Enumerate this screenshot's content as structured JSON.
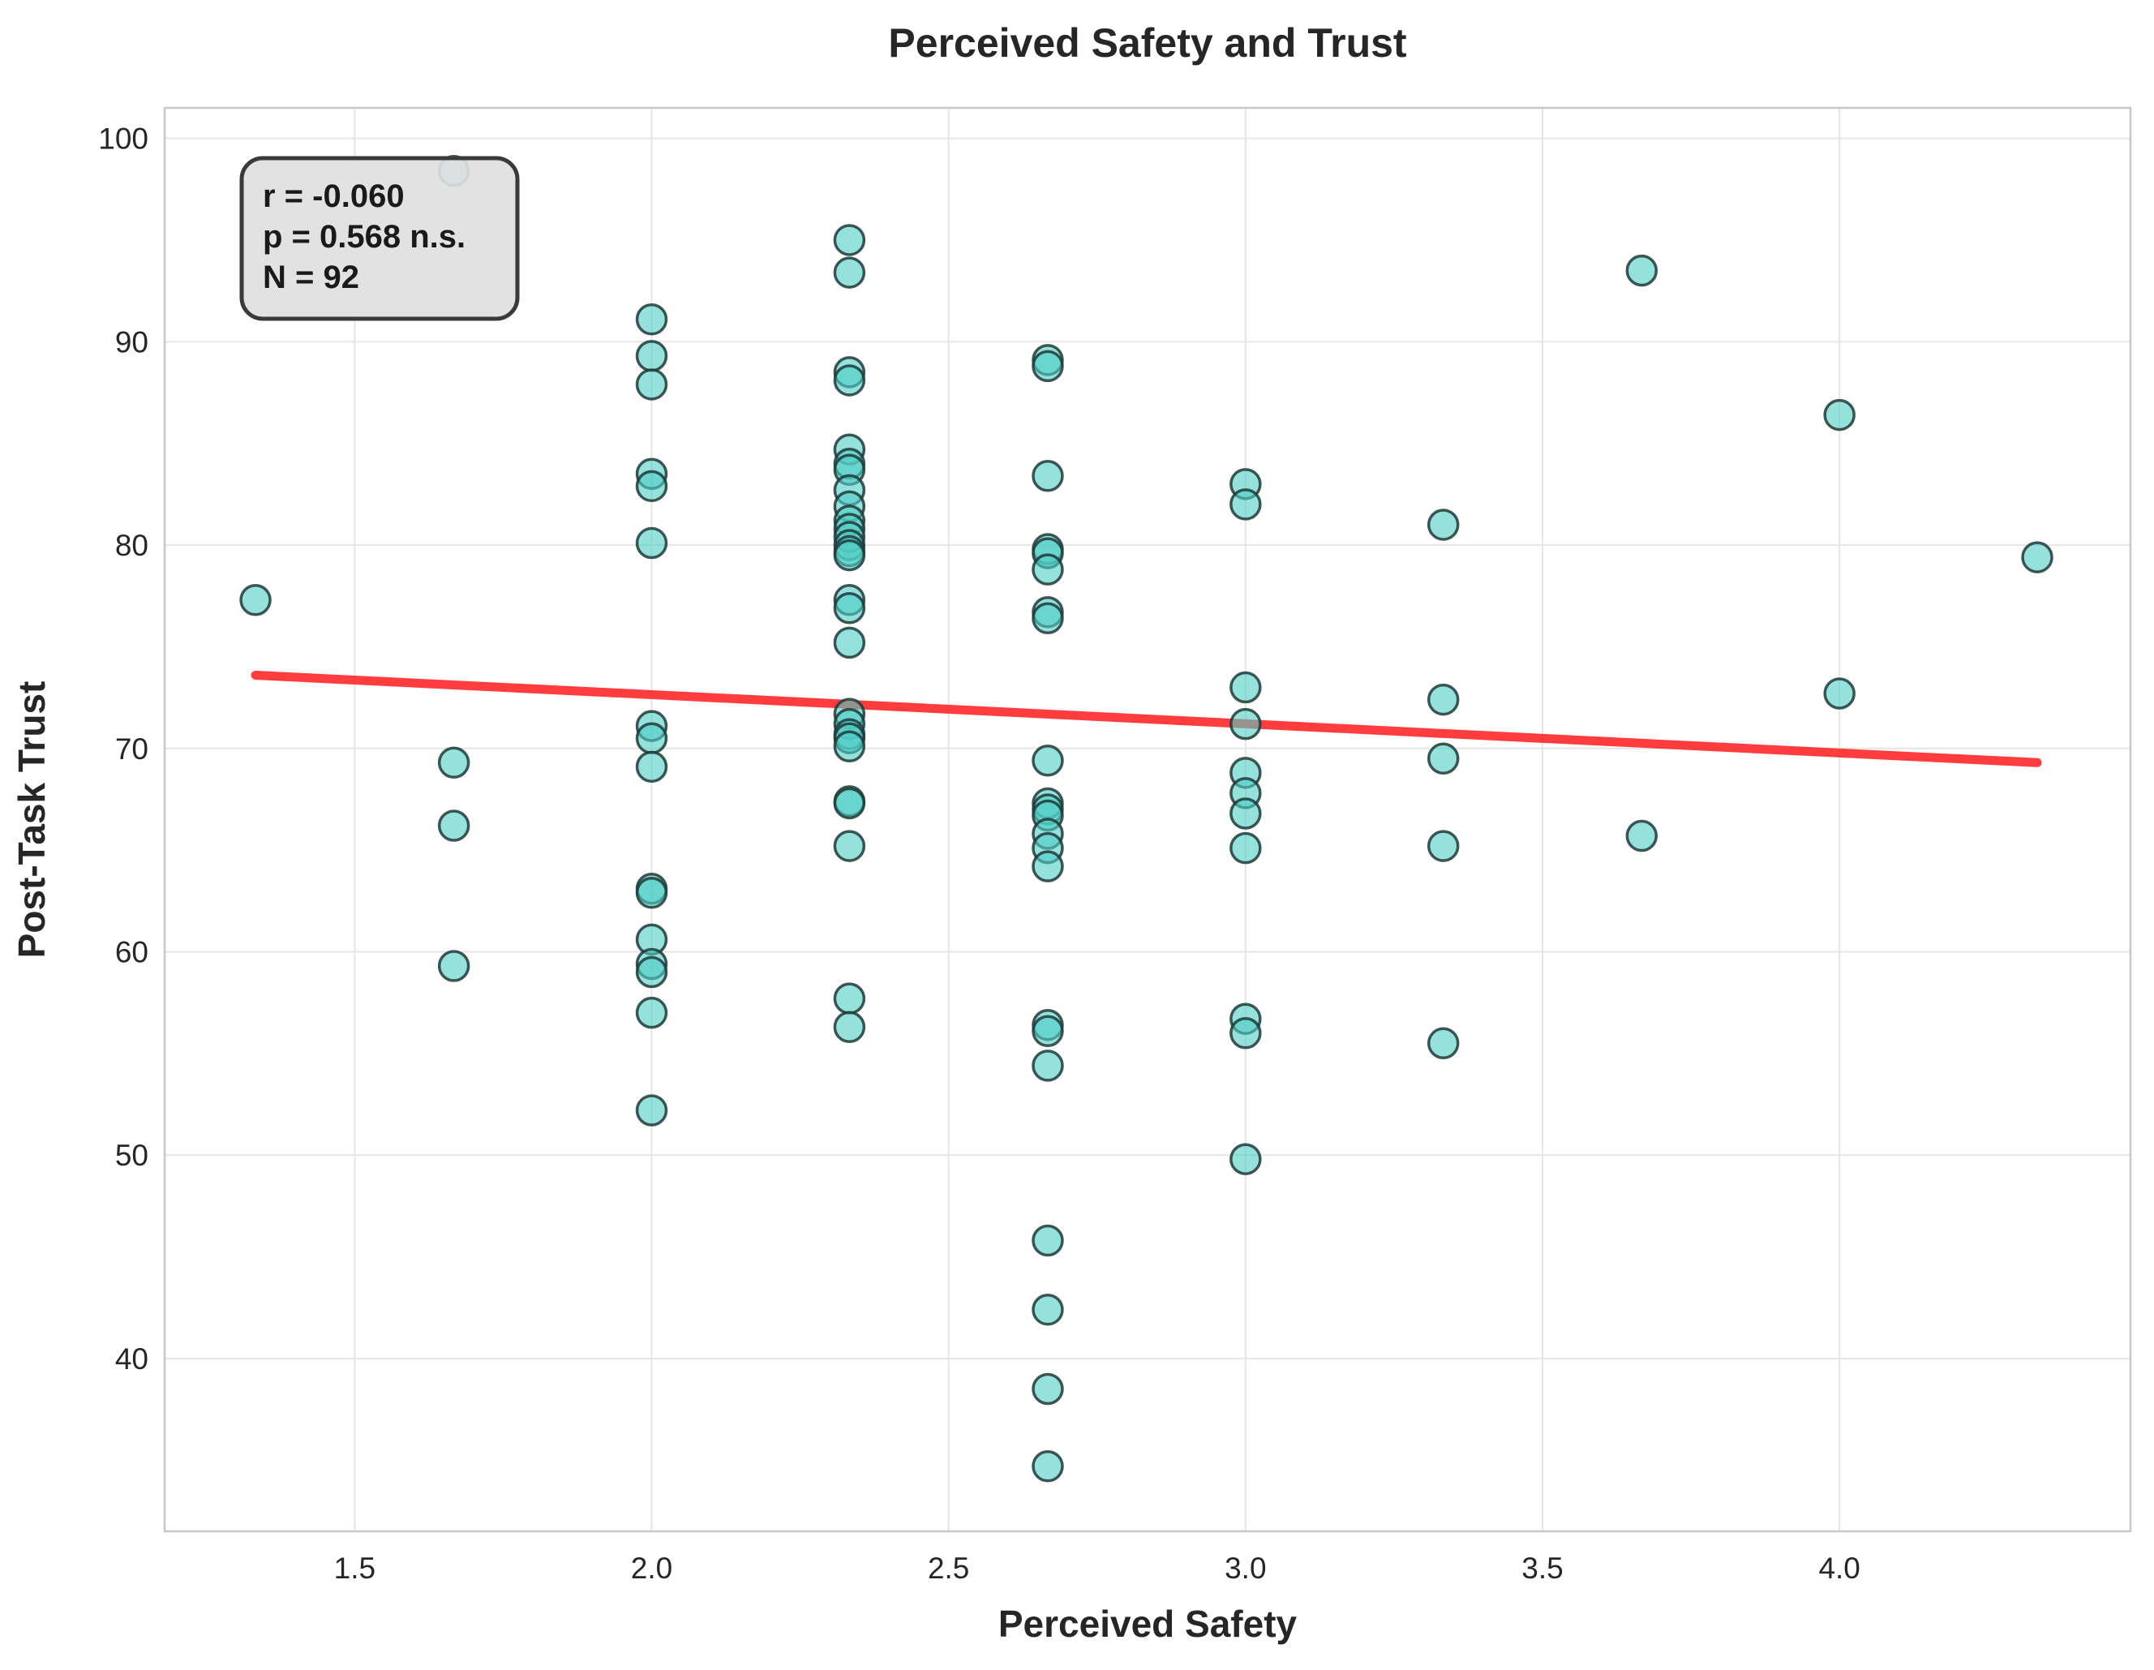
{
  "chart_data": {
    "type": "scatter",
    "title": "Perceived Safety and Trust",
    "xlabel": "Perceived Safety",
    "ylabel": "Post-Task Trust",
    "xlim": [
      1.18,
      4.49
    ],
    "ylim": [
      31.5,
      101.5
    ],
    "xticks": [
      1.5,
      2.0,
      2.5,
      3.0,
      3.5,
      4.0
    ],
    "yticks": [
      40,
      50,
      60,
      70,
      80,
      90,
      100
    ],
    "grid": true,
    "colors": {
      "point_fill": "#4ecdc4",
      "point_edge": "#1e3a38",
      "trend": "#ff3333",
      "stats_box": "#e0e0e0"
    },
    "trend_line": {
      "x": [
        1.333,
        4.333
      ],
      "y": [
        73.6,
        69.3
      ]
    },
    "stats": [
      "r = -0.060",
      "p = 0.568 n.s.",
      "N = 92"
    ],
    "points": [
      [
        1.333,
        77.3
      ],
      [
        1.667,
        98.4
      ],
      [
        1.667,
        69.3
      ],
      [
        1.667,
        66.2
      ],
      [
        1.667,
        59.3
      ],
      [
        2.0,
        91.1
      ],
      [
        2.0,
        89.3
      ],
      [
        2.0,
        87.9
      ],
      [
        2.0,
        83.5
      ],
      [
        2.0,
        82.9
      ],
      [
        2.0,
        80.1
      ],
      [
        2.0,
        71.1
      ],
      [
        2.0,
        70.5
      ],
      [
        2.0,
        69.1
      ],
      [
        2.0,
        63.1
      ],
      [
        2.0,
        62.9
      ],
      [
        2.0,
        60.6
      ],
      [
        2.0,
        59.4
      ],
      [
        2.0,
        59.0
      ],
      [
        2.0,
        57.0
      ],
      [
        2.0,
        52.2
      ],
      [
        2.333,
        95.0
      ],
      [
        2.333,
        93.4
      ],
      [
        2.333,
        88.5
      ],
      [
        2.333,
        88.1
      ],
      [
        2.333,
        84.7
      ],
      [
        2.333,
        84.0
      ],
      [
        2.333,
        83.7
      ],
      [
        2.333,
        82.7
      ],
      [
        2.333,
        81.9
      ],
      [
        2.333,
        81.2
      ],
      [
        2.333,
        80.8
      ],
      [
        2.333,
        80.4
      ],
      [
        2.333,
        80.0
      ],
      [
        2.333,
        79.7
      ],
      [
        2.333,
        79.5
      ],
      [
        2.333,
        77.3
      ],
      [
        2.333,
        76.9
      ],
      [
        2.333,
        75.2
      ],
      [
        2.333,
        71.7
      ],
      [
        2.333,
        71.2
      ],
      [
        2.333,
        70.7
      ],
      [
        2.333,
        70.5
      ],
      [
        2.333,
        70.1
      ],
      [
        2.333,
        67.4
      ],
      [
        2.333,
        67.3
      ],
      [
        2.333,
        65.2
      ],
      [
        2.333,
        57.7
      ],
      [
        2.333,
        56.3
      ],
      [
        2.667,
        89.1
      ],
      [
        2.667,
        88.8
      ],
      [
        2.667,
        83.4
      ],
      [
        2.667,
        79.8
      ],
      [
        2.667,
        79.6
      ],
      [
        2.667,
        78.8
      ],
      [
        2.667,
        76.7
      ],
      [
        2.667,
        76.4
      ],
      [
        2.667,
        69.4
      ],
      [
        2.667,
        67.3
      ],
      [
        2.667,
        67.0
      ],
      [
        2.667,
        66.7
      ],
      [
        2.667,
        65.8
      ],
      [
        2.667,
        65.1
      ],
      [
        2.667,
        64.2
      ],
      [
        2.667,
        56.4
      ],
      [
        2.667,
        56.1
      ],
      [
        2.667,
        54.4
      ],
      [
        2.667,
        45.8
      ],
      [
        2.667,
        42.4
      ],
      [
        2.667,
        38.5
      ],
      [
        2.667,
        34.7
      ],
      [
        3.0,
        83.0
      ],
      [
        3.0,
        82.0
      ],
      [
        3.0,
        73.0
      ],
      [
        3.0,
        71.2
      ],
      [
        3.0,
        68.8
      ],
      [
        3.0,
        67.8
      ],
      [
        3.0,
        66.8
      ],
      [
        3.0,
        65.1
      ],
      [
        3.0,
        56.7
      ],
      [
        3.0,
        56.0
      ],
      [
        3.0,
        49.8
      ],
      [
        3.333,
        81.0
      ],
      [
        3.333,
        72.4
      ],
      [
        3.333,
        69.5
      ],
      [
        3.333,
        65.2
      ],
      [
        3.333,
        55.5
      ],
      [
        3.667,
        93.5
      ],
      [
        3.667,
        65.7
      ],
      [
        4.0,
        86.4
      ],
      [
        4.0,
        72.7
      ],
      [
        4.333,
        79.4
      ]
    ]
  }
}
